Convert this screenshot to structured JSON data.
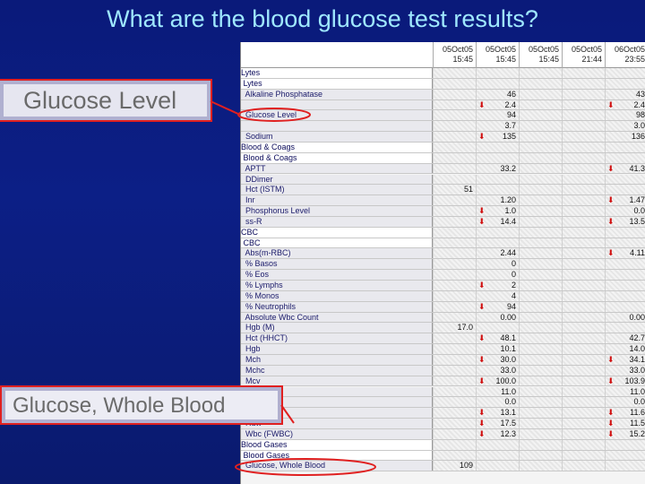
{
  "title": "What are the blood glucose test results?",
  "callouts": {
    "glucose_level": "Glucose Level",
    "glucose_blood": "Glucose, Whole Blood"
  },
  "columns": [
    {
      "date": "05Oct05",
      "time": "15:45"
    },
    {
      "date": "05Oct05",
      "time": "15:45"
    },
    {
      "date": "05Oct05",
      "time": "15:45"
    },
    {
      "date": "05Oct05",
      "time": "21:44"
    },
    {
      "date": "06Oct05",
      "time": "23:55"
    }
  ],
  "rows": [
    {
      "label": "Lytes",
      "header": true,
      "cells": [
        "",
        "",
        "",
        "",
        ""
      ]
    },
    {
      "label": " Lytes",
      "header": true,
      "cells": [
        "",
        "",
        "",
        "",
        ""
      ]
    },
    {
      "label": "  Alkaline Phosphatase",
      "cells": [
        "",
        "46",
        "",
        "",
        "43"
      ],
      "arrows": [
        false,
        false,
        false,
        false,
        false
      ]
    },
    {
      "label": "  ",
      "cells": [
        "",
        "2.4",
        "",
        "",
        "2.4"
      ],
      "arrows": [
        false,
        true,
        false,
        false,
        true
      ]
    },
    {
      "label": "  Glucose Level",
      "cells": [
        "",
        "94",
        "",
        "",
        "98"
      ],
      "arrows": [
        false,
        false,
        false,
        false,
        false
      ]
    },
    {
      "label": "  ",
      "cells": [
        "",
        "3.7",
        "",
        "",
        "3.0"
      ],
      "arrows": [
        false,
        false,
        false,
        false,
        false
      ]
    },
    {
      "label": "  Sodium",
      "cells": [
        "",
        "135",
        "",
        "",
        "136"
      ],
      "arrows": [
        false,
        true,
        false,
        false,
        false
      ]
    },
    {
      "label": "Blood & Coags",
      "header": true,
      "cells": [
        "",
        "",
        "",
        "",
        ""
      ]
    },
    {
      "label": " Blood & Coags",
      "header": true,
      "cells": [
        "",
        "",
        "",
        "",
        ""
      ]
    },
    {
      "label": "  APTT",
      "cells": [
        "",
        "33.2",
        "",
        "",
        "41.3"
      ],
      "arrows": [
        false,
        false,
        false,
        false,
        true
      ]
    },
    {
      "label": "  DDimer",
      "cells": [
        "",
        "",
        "",
        "",
        ""
      ]
    },
    {
      "label": "  Hct (ISTM)",
      "cells": [
        "51",
        "",
        "",
        "",
        ""
      ]
    },
    {
      "label": "  Inr",
      "cells": [
        "",
        "1.20",
        "",
        "",
        "1.47"
      ],
      "arrows": [
        false,
        false,
        false,
        false,
        true
      ]
    },
    {
      "label": "  Phosphorus Level",
      "cells": [
        "",
        "1.0",
        "",
        "",
        "0.0"
      ],
      "arrows": [
        false,
        true,
        false,
        false,
        false
      ]
    },
    {
      "label": "  ss-R",
      "cells": [
        "",
        "14.4",
        "",
        "",
        "13.5"
      ],
      "arrows": [
        false,
        true,
        false,
        false,
        true
      ]
    },
    {
      "label": "CBC",
      "header": true,
      "cells": [
        "",
        "",
        "",
        "",
        ""
      ]
    },
    {
      "label": " CBC",
      "header": true,
      "cells": [
        "",
        "",
        "",
        "",
        ""
      ]
    },
    {
      "label": "  Abs(m-RBC)",
      "cells": [
        "",
        "2.44",
        "",
        "",
        "4.11"
      ],
      "arrows": [
        false,
        false,
        false,
        false,
        true
      ]
    },
    {
      "label": "  % Basos",
      "cells": [
        "",
        "0",
        "",
        "",
        ""
      ]
    },
    {
      "label": "  % Eos",
      "cells": [
        "",
        "0",
        "",
        "",
        ""
      ]
    },
    {
      "label": "  % Lymphs",
      "cells": [
        "",
        "2",
        "",
        "",
        ""
      ],
      "arrows": [
        false,
        true,
        false,
        false,
        false
      ]
    },
    {
      "label": "  % Monos",
      "cells": [
        "",
        "4",
        "",
        "",
        ""
      ]
    },
    {
      "label": "  % Neutrophils",
      "cells": [
        "",
        "94",
        "",
        "",
        ""
      ],
      "arrows": [
        false,
        true,
        false,
        false,
        false
      ]
    },
    {
      "label": "  Absolute Wbc Count",
      "cells": [
        "",
        "0.00",
        "",
        "",
        "0.00"
      ]
    },
    {
      "label": "  Hgb (M)",
      "cells": [
        "17.0",
        "",
        "",
        "",
        ""
      ]
    },
    {
      "label": "  Hct (HHCT)",
      "cells": [
        "",
        "48.1",
        "",
        "",
        "42.7"
      ],
      "arrows": [
        false,
        true,
        false,
        false,
        false
      ]
    },
    {
      "label": "  Hgb",
      "cells": [
        "",
        "10.1",
        "",
        "",
        "14.0"
      ]
    },
    {
      "label": "  Mch",
      "cells": [
        "",
        "30.0",
        "",
        "",
        "34.1"
      ],
      "arrows": [
        false,
        true,
        false,
        false,
        true
      ]
    },
    {
      "label": "  Mchc",
      "cells": [
        "",
        "33.0",
        "",
        "",
        "33.0"
      ]
    },
    {
      "label": "  Mcv",
      "cells": [
        "",
        "100.0",
        "",
        "",
        "103.9"
      ],
      "arrows": [
        false,
        true,
        false,
        false,
        true
      ]
    },
    {
      "label": "  ",
      "cells": [
        "",
        "11.0",
        "",
        "",
        "11.0"
      ]
    },
    {
      "label": "  ",
      "cells": [
        "",
        "0.0",
        "",
        "",
        "0.0"
      ]
    },
    {
      "label": "  ",
      "cells": [
        "",
        "13.1",
        "",
        "",
        "11.6"
      ],
      "arrows": [
        false,
        true,
        false,
        false,
        true
      ]
    },
    {
      "label": "  Rdw",
      "cells": [
        "",
        "17.5",
        "",
        "",
        "11.5"
      ],
      "arrows": [
        false,
        true,
        false,
        false,
        true
      ]
    },
    {
      "label": "  Wbc (FWBC)",
      "cells": [
        "",
        "12.3",
        "",
        "",
        "15.2"
      ],
      "arrows": [
        false,
        true,
        false,
        false,
        true
      ]
    },
    {
      "label": "Blood Gases",
      "header": true,
      "cells": [
        "",
        "",
        "",
        "",
        ""
      ]
    },
    {
      "label": " Blood Gases",
      "header": true,
      "cells": [
        "",
        "",
        "",
        "",
        ""
      ]
    },
    {
      "label": "  Glucose, Whole Blood",
      "cells": [
        "109",
        "",
        "",
        "",
        ""
      ]
    }
  ],
  "colors": {
    "background": "#0c1f86",
    "title": "#9fe8ff",
    "highlight": "#e02020",
    "arrow": "#d01010"
  }
}
